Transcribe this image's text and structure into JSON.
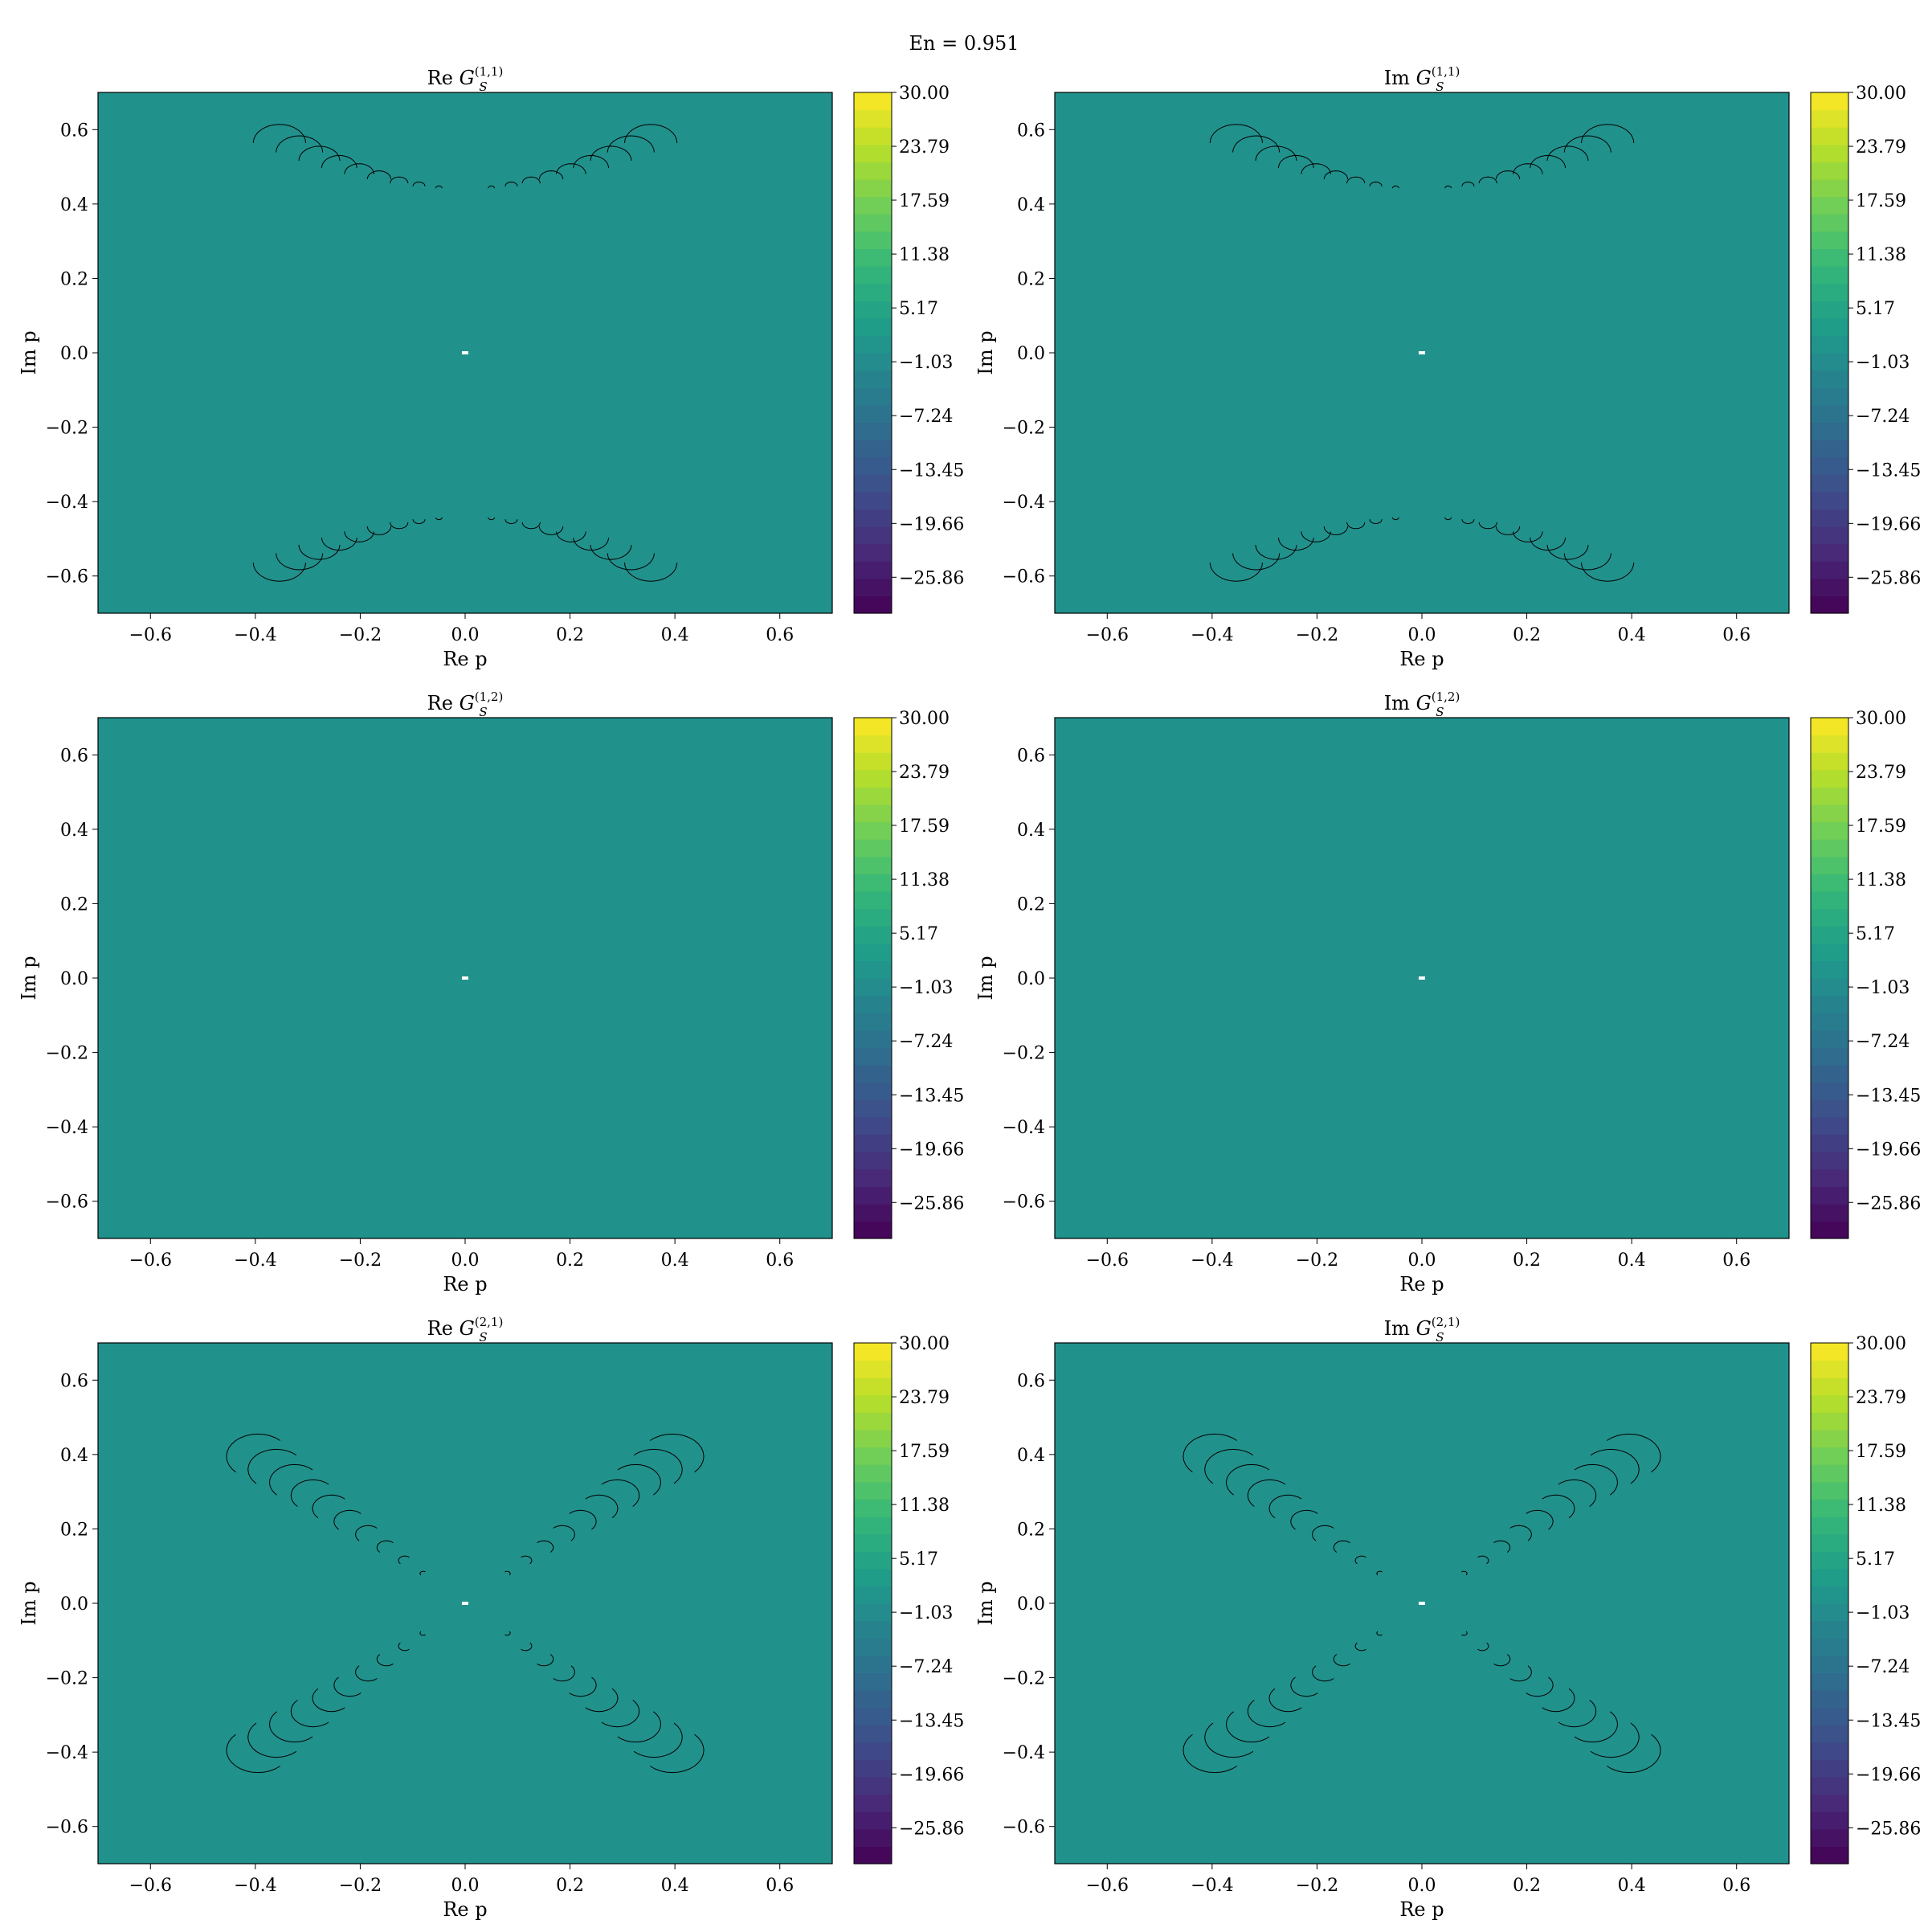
{
  "figure": {
    "suptitle": "En = 0.951",
    "background": "#ffffff"
  },
  "colorbar": {
    "ticks": [
      "30.00",
      "23.79",
      "17.59",
      "11.38",
      "5.17",
      "−1.03",
      "−7.24",
      "−13.45",
      "−19.66",
      "−25.86"
    ],
    "tick_values": [
      30.0,
      23.79,
      17.59,
      11.38,
      5.17,
      -1.03,
      -7.24,
      -13.45,
      -19.66,
      -25.86
    ],
    "vmin": -30.0,
    "vmax": 30.0,
    "levels": 30,
    "colormap": "viridis",
    "plateau_color": "#21918c"
  },
  "chart_data": [
    {
      "type": "heatmap",
      "title_prefix": "Re",
      "title_sup": "(1,1)",
      "xlabel": "Re p",
      "ylabel": "Im p",
      "xlim": [
        -0.7,
        0.7
      ],
      "ylim": [
        -0.7,
        0.7
      ],
      "xticks": [
        "−0.6",
        "−0.4",
        "−0.2",
        "0.0",
        "0.2",
        "0.4",
        "0.6"
      ],
      "yticks": [
        "0.6",
        "0.4",
        "0.2",
        "0.0",
        "−0.2",
        "−0.4",
        "−0.6"
      ],
      "field_value": 1.0,
      "singularity": [
        0.0,
        0.0
      ],
      "contour_pattern": "arcs",
      "features": "contour blobs near Re p ≈ ±0.05 to ±0.35 at Im p ≈ ±0.44 to ±0.58; wedge boundaries reaching plot edges near Re p ≈ ±0.3"
    },
    {
      "type": "heatmap",
      "title_prefix": "Im",
      "title_sup": "(1,1)",
      "xlabel": "Re p",
      "ylabel": "Im p",
      "xlim": [
        -0.7,
        0.7
      ],
      "ylim": [
        -0.7,
        0.7
      ],
      "xticks": [
        "−0.6",
        "−0.4",
        "−0.2",
        "0.0",
        "0.2",
        "0.4",
        "0.6"
      ],
      "yticks": [
        "0.6",
        "0.4",
        "0.2",
        "0.0",
        "−0.2",
        "−0.4",
        "−0.6"
      ],
      "field_value": 1.0,
      "singularity": [
        0.0,
        0.0
      ],
      "contour_pattern": "arcs",
      "features": "contour blobs along arcs Im p ≈ ±0.44 to ±0.68, Re p ≈ ±0.03 to ±0.41"
    },
    {
      "type": "heatmap",
      "title_prefix": "Re",
      "title_sup": "(1,2)",
      "xlabel": "Re p",
      "ylabel": "Im p",
      "xlim": [
        -0.7,
        0.7
      ],
      "ylim": [
        -0.7,
        0.7
      ],
      "xticks": [
        "−0.6",
        "−0.4",
        "−0.2",
        "0.0",
        "0.2",
        "0.4",
        "0.6"
      ],
      "yticks": [
        "0.6",
        "0.4",
        "0.2",
        "0.0",
        "−0.2",
        "−0.4",
        "−0.6"
      ],
      "field_value": 1.0,
      "singularity": [
        0.0,
        0.0
      ],
      "contour_pattern": "none",
      "features": "uniform field"
    },
    {
      "type": "heatmap",
      "title_prefix": "Im",
      "title_sup": "(1,2)",
      "xlabel": "Re p",
      "ylabel": "Im p",
      "xlim": [
        -0.7,
        0.7
      ],
      "ylim": [
        -0.7,
        0.7
      ],
      "xticks": [
        "−0.6",
        "−0.4",
        "−0.2",
        "0.0",
        "0.2",
        "0.4",
        "0.6"
      ],
      "yticks": [
        "0.6",
        "0.4",
        "0.2",
        "0.0",
        "−0.2",
        "−0.4",
        "−0.6"
      ],
      "field_value": 1.0,
      "singularity": [
        0.0,
        0.0
      ],
      "contour_pattern": "none",
      "features": "uniform field"
    },
    {
      "type": "heatmap",
      "title_prefix": "Re",
      "title_sup": "(2,1)",
      "xlabel": "Re p",
      "ylabel": "Im p",
      "xlim": [
        -0.7,
        0.7
      ],
      "ylim": [
        -0.7,
        0.7
      ],
      "xticks": [
        "−0.6",
        "−0.4",
        "−0.2",
        "0.0",
        "0.2",
        "0.4",
        "0.6"
      ],
      "yticks": [
        "0.6",
        "0.4",
        "0.2",
        "0.0",
        "−0.2",
        "−0.4",
        "−0.6"
      ],
      "field_value": 1.0,
      "singularity": [
        0.0,
        0.0
      ],
      "contour_pattern": "diagonals",
      "features": "contour blobs along diagonals Im p = ±Re p from |Re p| ≈ 0.07 to 0.4; wedges reaching plot edges near Re p ≈ ±0.42"
    },
    {
      "type": "heatmap",
      "title_prefix": "Im",
      "title_sup": "(2,1)",
      "xlabel": "Re p",
      "ylabel": "Im p",
      "xlim": [
        -0.7,
        0.7
      ],
      "ylim": [
        -0.7,
        0.7
      ],
      "xticks": [
        "−0.6",
        "−0.4",
        "−0.2",
        "0.0",
        "0.2",
        "0.4",
        "0.6"
      ],
      "yticks": [
        "0.6",
        "0.4",
        "0.2",
        "0.0",
        "−0.2",
        "−0.4",
        "−0.6"
      ],
      "field_value": 1.0,
      "singularity": [
        0.0,
        0.0
      ],
      "contour_pattern": "diagonals",
      "features": "contour blobs along diagonals Im p = ±Re p from |Re p| ≈ 0.08 to 0.48"
    }
  ]
}
